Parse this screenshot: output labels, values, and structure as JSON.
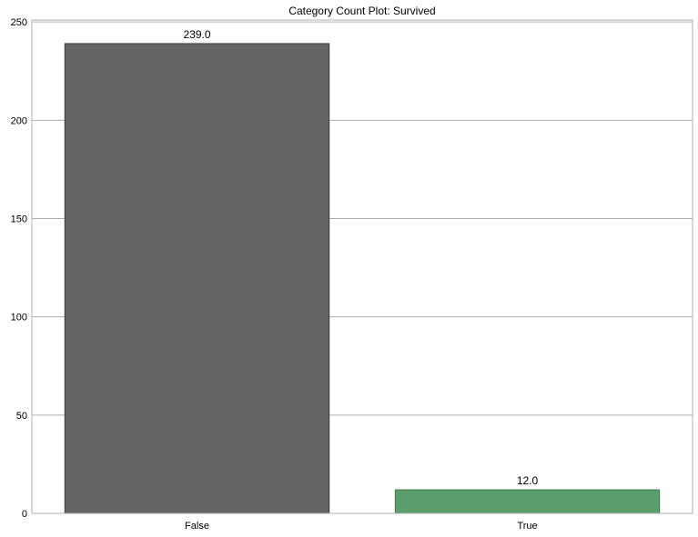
{
  "chart_data": {
    "type": "bar",
    "title": "Category Count Plot: Survived",
    "xlabel": "",
    "ylabel": "",
    "categories": [
      "False",
      "True"
    ],
    "values": [
      239.0,
      12.0
    ],
    "value_labels": [
      "239.0",
      "12.0"
    ],
    "ylim": [
      0,
      251
    ],
    "yticks": [
      0,
      50,
      100,
      150,
      200,
      250
    ],
    "ytick_labels": [
      "0",
      "50",
      "100",
      "150",
      "200",
      "250"
    ],
    "grid": "horizontal",
    "colors": {
      "bars": [
        "#636466",
        "#5b9e6c"
      ],
      "bar_edges": [
        "#3a3b3c",
        "#3f7a4f"
      ],
      "grid": "#b0b0b0"
    }
  }
}
